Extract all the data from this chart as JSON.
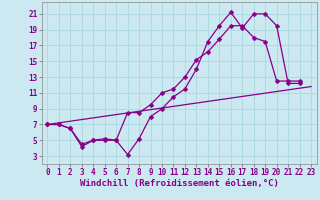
{
  "xlabel": "Windchill (Refroidissement éolien,°C)",
  "background_color": "#cce8f0",
  "line_color": "#880088",
  "xlim": [
    -0.5,
    23.5
  ],
  "ylim": [
    2,
    22.5
  ],
  "xticks": [
    0,
    1,
    2,
    3,
    4,
    5,
    6,
    7,
    8,
    9,
    10,
    11,
    12,
    13,
    14,
    15,
    16,
    17,
    18,
    19,
    20,
    21,
    22,
    23
  ],
  "yticks": [
    3,
    5,
    7,
    9,
    11,
    13,
    15,
    17,
    19,
    21
  ],
  "series1_x": [
    0,
    1,
    2,
    3,
    4,
    5,
    6,
    7,
    8,
    9,
    10,
    11,
    12,
    13,
    14,
    15,
    16,
    17,
    18,
    19,
    20,
    21,
    22
  ],
  "series1_y": [
    7,
    7,
    6.5,
    4.5,
    5,
    5,
    5,
    3.2,
    5.2,
    8,
    9,
    10.5,
    11.5,
    14,
    17.5,
    19.5,
    21.2,
    19.2,
    21,
    21,
    19.5,
    12.2,
    12.2
  ],
  "series2_x": [
    0,
    1,
    2,
    3,
    4,
    5,
    6,
    7,
    8,
    9,
    10,
    11,
    12,
    13,
    14,
    15,
    16,
    17,
    18,
    19,
    20,
    21,
    22
  ],
  "series2_y": [
    7,
    7,
    6.5,
    4.2,
    5,
    5.2,
    5,
    8.5,
    8.5,
    9.5,
    11,
    11.5,
    13,
    15.2,
    16.2,
    17.8,
    19.5,
    19.5,
    18,
    17.5,
    12.5,
    12.5,
    12.5
  ],
  "series3_x": [
    0,
    23
  ],
  "series3_y": [
    7,
    11.8
  ],
  "grid_color": "#aad8e0",
  "marker": "D",
  "markersize": 2.5,
  "linewidth": 0.9,
  "xlabel_fontsize": 6.5,
  "tick_fontsize": 5.5
}
